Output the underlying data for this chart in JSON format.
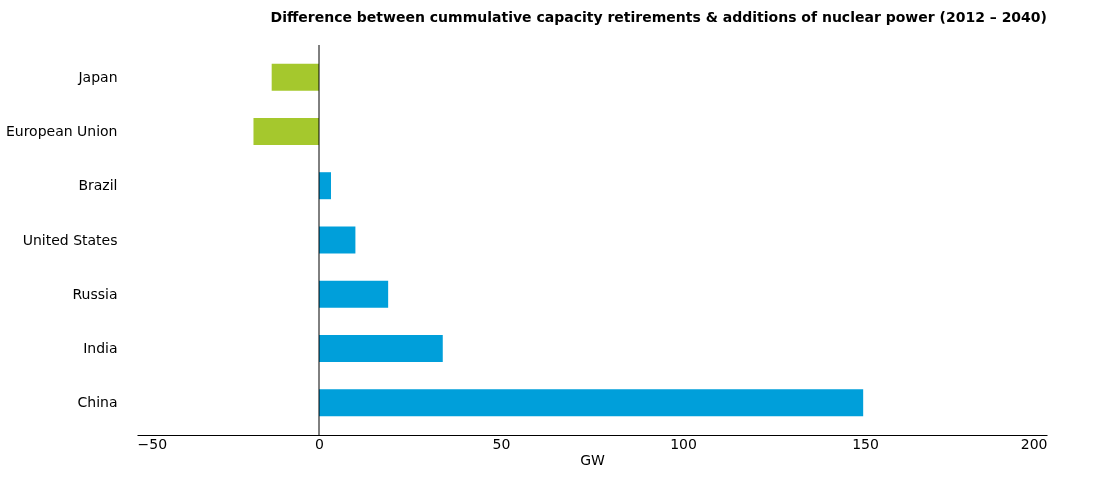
{
  "chart_data": {
    "type": "bar",
    "orientation": "horizontal",
    "title": "Difference between cummulative capacity retirements & additions of nuclear power (2012 – 2040)",
    "xlabel": "GW",
    "categories": [
      "Japan",
      "European Union",
      "Brazil",
      "United States",
      "Russia",
      "India",
      "China"
    ],
    "values": [
      -13,
      -18,
      3.3,
      10,
      19,
      34,
      149.5
    ],
    "colors": [
      "#a5c82d",
      "#a5c82d",
      "#009fda",
      "#009fda",
      "#009fda",
      "#009fda",
      "#009fda"
    ],
    "xlim": [
      -50,
      200
    ],
    "xticks": [
      -50,
      0,
      50,
      100,
      150,
      200
    ],
    "grid": false,
    "ref_lines": [
      {
        "axis": "x",
        "value": 0,
        "color": "#000000"
      }
    ]
  }
}
